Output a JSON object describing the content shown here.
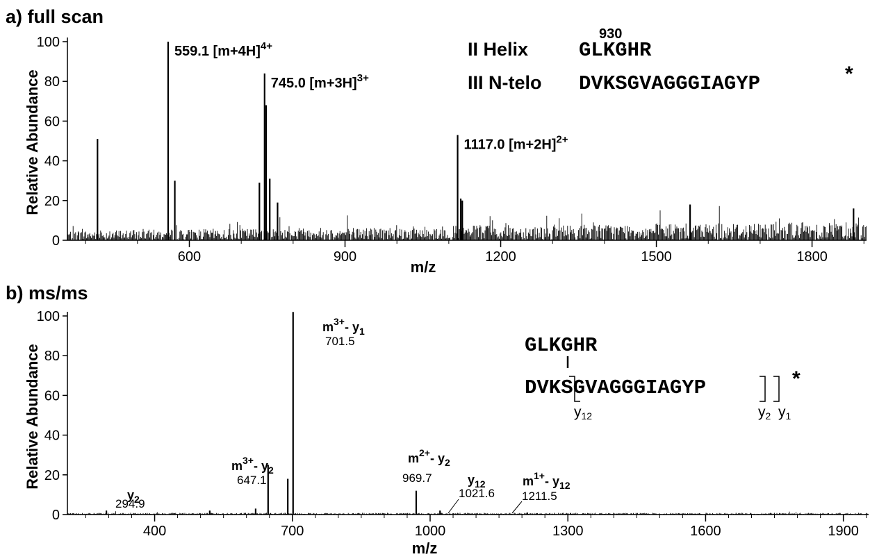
{
  "chart_data": [
    {
      "panel_label": "a) full scan",
      "type": "spectrum",
      "xlabel": "m/z",
      "ylabel": "Relative Abundance",
      "xlim": [
        365,
        1905
      ],
      "ylim": [
        0,
        100
      ],
      "xticks": [
        "600",
        "900",
        "1200",
        "1500",
        "1800"
      ],
      "yticks": [
        "0",
        "20",
        "40",
        "60",
        "80",
        "100"
      ],
      "grid": false,
      "noise_range": [
        365,
        1905
      ],
      "noise_level": "rising from ~5 to ~10",
      "peaks": [
        {
          "mz": 423,
          "intensity": 51
        },
        {
          "mz": 559.1,
          "intensity": 100
        },
        {
          "mz": 572,
          "intensity": 30
        },
        {
          "mz": 735,
          "intensity": 29
        },
        {
          "mz": 745.0,
          "intensity": 84
        },
        {
          "mz": 748,
          "intensity": 68
        },
        {
          "mz": 755,
          "intensity": 31
        },
        {
          "mz": 770,
          "intensity": 19
        },
        {
          "mz": 1117.0,
          "intensity": 53
        },
        {
          "mz": 1123,
          "intensity": 21
        },
        {
          "mz": 1126,
          "intensity": 20
        },
        {
          "mz": 1565,
          "intensity": 18
        },
        {
          "mz": 1880,
          "intensity": 16
        }
      ],
      "annotations": [
        {
          "mz": 559.1,
          "y": 100,
          "value": "559.1",
          "ion": "[m+4H]",
          "charge": "4+"
        },
        {
          "mz": 745.0,
          "y": 84,
          "value": "745.0",
          "ion": "[m+3H]",
          "charge": "3+"
        },
        {
          "mz": 1117.0,
          "y": 53,
          "value": "1117.0",
          "ion": "[m+2H]",
          "charge": "2+"
        }
      ],
      "sequence": {
        "site_number": "930",
        "chain1_name": "II Helix",
        "chain1": "GLKGHR",
        "chain2_name": "III N-telo",
        "chain2": "DVKSGVAGGGIAGYP",
        "marker": "*"
      }
    },
    {
      "panel_label": "b) ms/ms",
      "type": "spectrum",
      "xlabel": "m/z",
      "ylabel": "Relative Abundance",
      "xlim": [
        210,
        1955
      ],
      "ylim": [
        0,
        100
      ],
      "xticks": [
        "400",
        "700",
        "1000",
        "1300",
        "1600",
        "1900"
      ],
      "yticks": [
        "0",
        "20",
        "40",
        "60",
        "80",
        "100"
      ],
      "grid": false,
      "noise_range": [
        210,
        1955
      ],
      "noise_level": "~1",
      "peaks": [
        {
          "mz": 294.9,
          "intensity": 2
        },
        {
          "mz": 520,
          "intensity": 2
        },
        {
          "mz": 620,
          "intensity": 3
        },
        {
          "mz": 647.1,
          "intensity": 25
        },
        {
          "mz": 690,
          "intensity": 18
        },
        {
          "mz": 701.5,
          "intensity": 102
        },
        {
          "mz": 969.7,
          "intensity": 12
        },
        {
          "mz": 1021.6,
          "intensity": 2
        },
        {
          "mz": 1211.5,
          "intensity": 1
        }
      ],
      "annotations": [
        {
          "value": "294.9",
          "ion": "y",
          "sub": "2"
        },
        {
          "value": "647.1",
          "prefix": "m",
          "charge": "3+",
          "ion": "y",
          "sub": "2"
        },
        {
          "value": "701.5",
          "prefix": "m",
          "charge": "3+",
          "ion": "y",
          "sub": "1"
        },
        {
          "value": "969.7",
          "prefix": "m",
          "charge": "2+",
          "ion": "y",
          "sub": "2"
        },
        {
          "value": "1021.6",
          "ion": "y",
          "sub": "12"
        },
        {
          "value": "1211.5",
          "prefix": "m",
          "charge": "1+",
          "ion": "y",
          "sub": "12"
        }
      ],
      "sequence": {
        "chain1": "GLKGHR",
        "chain2": "DVKSGVAGGGIAGYP",
        "marker": "*",
        "fragments": [
          "y12",
          "y2",
          "y1"
        ]
      }
    }
  ],
  "text": {
    "a_title": "a) full scan",
    "b_title": "b) ms/ms",
    "ylabel": "Relative Abundance",
    "xlabel": "m/z",
    "ion_dash": "- ",
    "a_site": "930",
    "a_chain1_name": "II Helix",
    "a_chain1": "GLKGHR",
    "a_chain2_name": "III N-telo",
    "a_chain2": "DVKSGVAGGGIAGYP",
    "star": "*",
    "b_chain1": "GLKGHR",
    "b_chain2": "DVKSGVAGGGIAGYP",
    "frag_y": "y",
    "frag_12": "12",
    "frag_2": "2",
    "frag_1": "1"
  }
}
